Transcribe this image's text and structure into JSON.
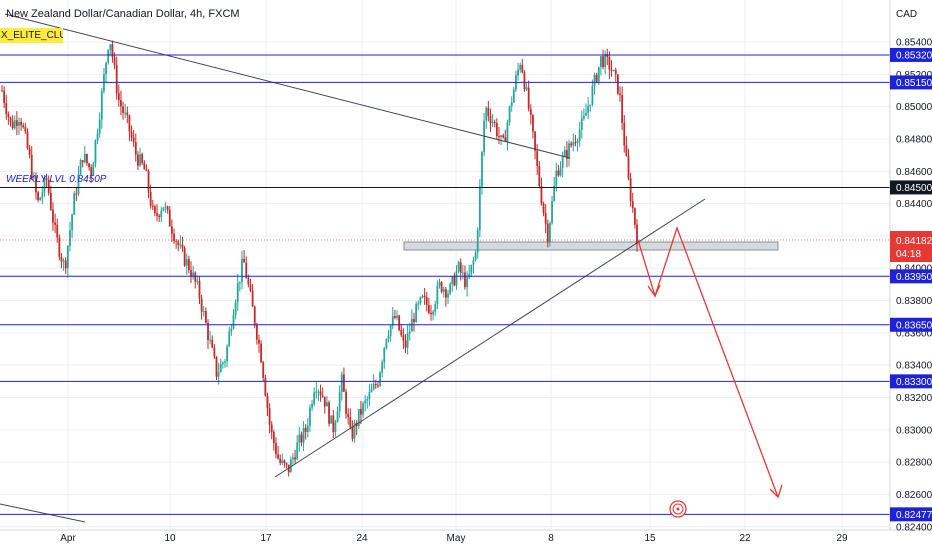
{
  "header": {
    "title": "New Zealand Dollar/Canadian Dollar, 4h, FXCM",
    "badge": "X_ELITE_CLUB",
    "currency": "CAD"
  },
  "chart_data": {
    "type": "candlestick",
    "title": "New Zealand Dollar/Canadian Dollar, 4h, FXCM",
    "ylabel": "CAD",
    "ylim": [
      0.8238,
      0.8566
    ],
    "y_ticks": [
      "0.85400",
      "0.85200",
      "0.85000",
      "0.84800",
      "0.84600",
      "0.84400",
      "0.84200",
      "0.84000",
      "0.83800",
      "0.83600",
      "0.83400",
      "0.83200",
      "0.83000",
      "0.82800",
      "0.82600",
      "0.82400"
    ],
    "x_ticks": [
      "Apr",
      "10",
      "17",
      "24",
      "May",
      "8",
      "15",
      "22",
      "29"
    ],
    "levels": [
      {
        "value": 0.8532,
        "label": "0.85320",
        "color": "#1e22d6"
      },
      {
        "value": 0.8515,
        "label": "0.85150",
        "color": "#1e22d6"
      },
      {
        "value": 0.845,
        "label": "0.84500",
        "color": "#131722"
      },
      {
        "value": 0.8395,
        "label": "0.83950",
        "color": "#1e22d6"
      },
      {
        "value": 0.8365,
        "label": "0.83650",
        "color": "#1e22d6"
      },
      {
        "value": 0.833,
        "label": "0.83300",
        "color": "#1e22d6"
      },
      {
        "value": 0.82477,
        "label": "0.82477",
        "color": "#1e22d6"
      }
    ],
    "current_price": {
      "value": 0.84182,
      "label": "0.84182",
      "countdown": "04:18",
      "color": "#e53935"
    },
    "annotation": "WEEKLY LVL 0.8450P",
    "colors": {
      "up": "#26a69a",
      "down": "#c62828",
      "grid": "#eceff2",
      "projection": "#e53935",
      "zone": "#d6d9dd"
    },
    "price_path": [
      [
        0.851,
        0.8488,
        0.8495,
        0.847,
        0.844,
        0.8455,
        0.842,
        0.84,
        0.844,
        0.847,
        0.846,
        0.85,
        0.8545,
        0.8505,
        0.849,
        0.847,
        0.846,
        0.843,
        0.844,
        0.8425,
        0.841,
        0.84,
        0.8385,
        0.836,
        0.8335,
        0.8345,
        0.838,
        0.8405,
        0.8375,
        0.8345,
        0.83,
        0.828,
        0.8275,
        0.829,
        0.83,
        0.833,
        0.832,
        0.83,
        0.833,
        0.8295,
        0.831,
        0.832,
        0.833,
        0.836,
        0.837,
        0.835,
        0.837,
        0.838,
        0.8375,
        0.839,
        0.8385,
        0.84,
        0.839,
        0.841,
        0.85,
        0.849,
        0.8475,
        0.8505,
        0.853,
        0.8495,
        0.8455,
        0.842,
        0.846,
        0.847,
        0.848,
        0.849,
        0.851,
        0.853,
        0.8525,
        0.851,
        0.8455,
        0.842
      ]
    ]
  }
}
